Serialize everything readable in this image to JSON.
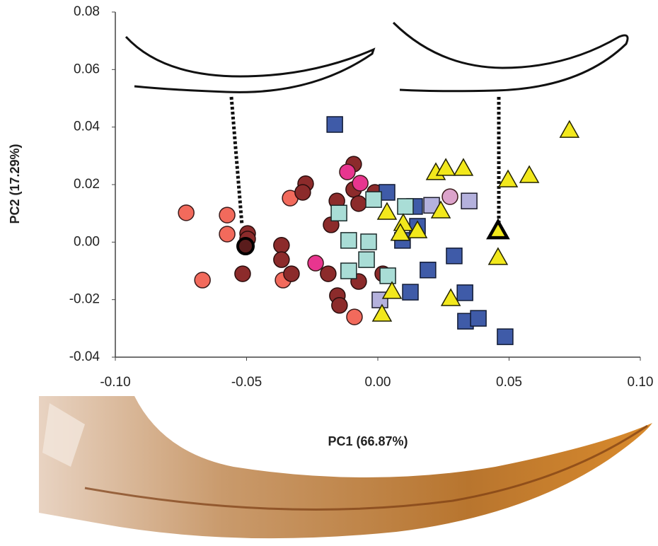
{
  "chart_data": {
    "type": "scatter",
    "xlabel": "PC1 (66.87%)",
    "ylabel": "PC2 (17.29%)",
    "xlim": [
      -0.1,
      0.1
    ],
    "ylim": [
      -0.04,
      0.08
    ],
    "xticks": [
      {
        "value": -0.1,
        "label": "-0.10"
      },
      {
        "value": -0.05,
        "label": "-0.05"
      },
      {
        "value": 0,
        "label": "0.00"
      },
      {
        "value": 0.05,
        "label": "0.05"
      },
      {
        "value": 0.1,
        "label": "0.10"
      }
    ],
    "yticks": [
      {
        "value": -0.04,
        "label": "-0.04"
      },
      {
        "value": -0.02,
        "label": "-0.02"
      },
      {
        "value": 0,
        "label": "0.00"
      },
      {
        "value": 0.02,
        "label": "0.02"
      },
      {
        "value": 0.04,
        "label": "0.04"
      },
      {
        "value": 0.06,
        "label": "0.06"
      },
      {
        "value": 0.08,
        "label": "0.08"
      }
    ],
    "grid": false,
    "series": [
      {
        "marker": "circle",
        "color": "#f26a5c",
        "edgecolor": "#3a1a1a",
        "linewidth": 1.5,
        "x": [
          -0.073,
          -0.0574,
          -0.0574,
          -0.0668,
          -0.0334,
          -0.0361,
          -0.0089
        ],
        "y": [
          0.0102,
          0.0094,
          0.0028,
          -0.0132,
          0.0153,
          -0.0132,
          -0.026
        ]
      },
      {
        "marker": "circle",
        "color": "#8c2b2b",
        "edgecolor": "#2a0d0d",
        "linewidth": 1.5,
        "x": [
          -0.0496,
          -0.0496,
          -0.0515,
          -0.0367,
          -0.0367,
          -0.0329,
          -0.0275,
          -0.0286,
          -0.0156,
          -0.0178,
          -0.0189,
          -0.0154,
          -0.0146,
          -0.0092,
          -0.0092,
          -0.0073,
          -0.0073,
          -0.0011,
          0.0019
        ],
        "y": [
          0.003,
          0.0011,
          -0.011,
          -0.0011,
          -0.0061,
          -0.011,
          0.0203,
          0.0173,
          0.0143,
          0.006,
          -0.011,
          -0.0186,
          -0.022,
          0.0271,
          0.0183,
          -0.0137,
          0.0134,
          0.0173,
          -0.011
        ]
      },
      {
        "marker": "circle",
        "color": "#e8358f",
        "edgecolor": "#3a1a1a",
        "linewidth": 1.5,
        "x": [
          -0.0116,
          -0.0067,
          -0.0237
        ],
        "y": [
          0.0244,
          0.0205,
          -0.0073
        ]
      },
      {
        "marker": "circle",
        "color": "#dca3cb",
        "edgecolor": "#3a1a1a",
        "linewidth": 1.5,
        "x": [
          0.0275
        ],
        "y": [
          0.0158
        ]
      },
      {
        "marker": "circle",
        "color": "#5a1c1c",
        "edgecolor": "#000000",
        "linewidth": 4,
        "x": [
          -0.0504
        ],
        "y": [
          -0.0014
        ]
      },
      {
        "marker": "square",
        "color": "#3f5ba8",
        "edgecolor": "#111a33",
        "linewidth": 1.5,
        "x": [
          -0.0164,
          0.0035,
          0.014,
          0.0094,
          0.0291,
          0.0191,
          0.0124,
          0.0332,
          0.0334,
          0.0383,
          0.0485,
          0.0151
        ],
        "y": [
          0.0409,
          0.0173,
          0.0124,
          0.0006,
          -0.0048,
          -0.0097,
          -0.0174,
          -0.0176,
          -0.0275,
          -0.0265,
          -0.0329,
          0.0055
        ]
      },
      {
        "marker": "square",
        "color": "#a9ddd6",
        "edgecolor": "#1a2a2a",
        "linewidth": 1.5,
        "x": [
          -0.0148,
          -0.0111,
          -0.0111,
          -0.0035,
          -0.0043,
          -0.0016,
          0.0105,
          0.0038
        ],
        "y": [
          0.0101,
          0.0006,
          -0.01,
          0.0001,
          -0.0061,
          0.0148,
          0.0124,
          -0.0117
        ]
      },
      {
        "marker": "square",
        "color": "#b4b1dd",
        "edgecolor": "#1a1a2a",
        "linewidth": 1.5,
        "x": [
          0.0008,
          0.0205,
          0.0348
        ],
        "y": [
          -0.0201,
          0.0128,
          0.0143
        ]
      },
      {
        "marker": "triangle",
        "color": "#f2e81c",
        "edgecolor": "#222200",
        "linewidth": 1.5,
        "x": [
          0.0035,
          0.0097,
          0.0151,
          0.0221,
          0.0259,
          0.0326,
          0.0496,
          0.0577,
          0.073,
          0.0458,
          0.0278,
          0.0054,
          0.0016,
          0.024,
          0.0086
        ],
        "y": [
          0.0104,
          0.0065,
          0.004,
          0.0242,
          0.0257,
          0.0257,
          0.0217,
          0.0232,
          0.0389,
          -0.0053,
          -0.0196,
          -0.0171,
          -0.025,
          0.0109,
          0.0031
        ]
      },
      {
        "marker": "triangle",
        "color": "#f2e81c",
        "edgecolor": "#000000",
        "linewidth": 4.5,
        "x": [
          0.0458
        ],
        "y": [
          0.004
        ]
      }
    ]
  }
}
